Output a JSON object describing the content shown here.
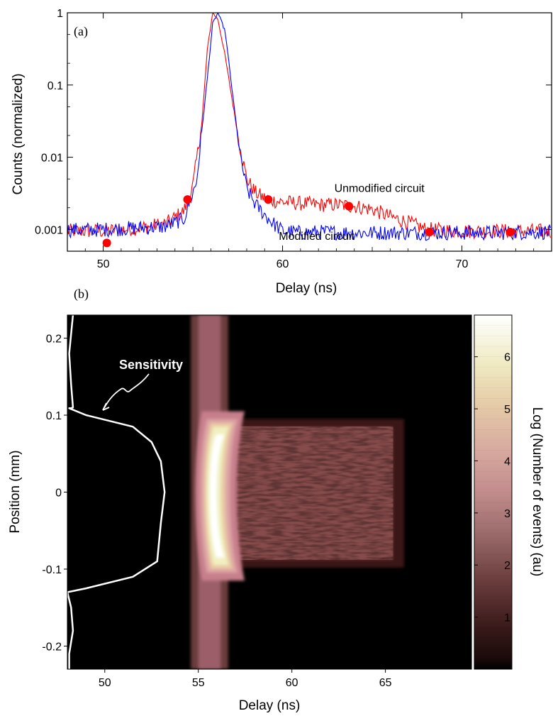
{
  "chart_data": [
    {
      "type": "line",
      "panel_label": "(a)",
      "title": "",
      "xlabel": "Delay (ns)",
      "ylabel": "Counts (normalized)",
      "xlim": [
        48,
        75
      ],
      "ylim": [
        0.0005,
        1
      ],
      "yscale": "log",
      "x_ticks": [
        50,
        60,
        70
      ],
      "x_tick_labels": [
        "50",
        "60",
        "70"
      ],
      "y_ticks": [
        0.001,
        0.01,
        0.1,
        1
      ],
      "y_tick_labels": [
        "0.001",
        "0.01",
        "0.1",
        "1"
      ],
      "grid": false,
      "series": [
        {
          "name": "Unmodified circuit",
          "color": "#ff0000",
          "x": [
            48,
            50,
            52,
            53.5,
            54.5,
            55,
            55.5,
            55.8,
            56.1,
            56.4,
            56.8,
            57.2,
            57.6,
            58,
            58.5,
            59,
            59.5,
            60,
            61,
            62,
            63,
            64,
            65,
            66,
            67,
            68,
            70,
            72,
            75
          ],
          "y": [
            0.00095,
            0.00095,
            0.00105,
            0.0012,
            0.0018,
            0.004,
            0.03,
            0.3,
            1,
            0.8,
            0.25,
            0.06,
            0.015,
            0.005,
            0.0032,
            0.0027,
            0.0025,
            0.0024,
            0.0023,
            0.0022,
            0.0022,
            0.0021,
            0.0019,
            0.0015,
            0.00125,
            0.001,
            0.00095,
            0.00095,
            0.00095
          ]
        },
        {
          "name": "Modified circuit",
          "color": "#0000ff",
          "x": [
            48,
            50,
            52,
            53.5,
            54.5,
            55.2,
            55.8,
            56.1,
            56.4,
            56.8,
            57.2,
            57.6,
            58,
            58.5,
            59,
            59.5,
            60,
            61,
            62,
            64,
            66,
            68,
            70,
            72,
            75
          ],
          "y": [
            0.00098,
            0.001,
            0.00105,
            0.0011,
            0.0014,
            0.0045,
            0.12,
            0.7,
            1,
            0.55,
            0.08,
            0.012,
            0.0036,
            0.0022,
            0.0016,
            0.0012,
            0.00095,
            0.0009,
            0.00092,
            0.0009,
            0.0009,
            0.0009,
            0.0009,
            0.0009,
            0.00092
          ]
        },
        {
          "name": "",
          "style": "markers",
          "color": "#ff0000",
          "x": [
            50.2,
            54.7,
            59.2,
            63.7,
            68.2,
            72.7
          ],
          "y": [
            0.00065,
            0.0026,
            0.0026,
            0.0021,
            0.00092,
            0.00092
          ]
        }
      ],
      "annotations": [
        {
          "text": "Unmodified circuit",
          "x": 65.4,
          "y": 0.0033
        },
        {
          "text": "Modified circuit",
          "x": 61.9,
          "y": 0.00072
        }
      ]
    },
    {
      "type": "heatmap",
      "panel_label": "(b)",
      "title": "",
      "xlabel": "Delay (ns)",
      "ylabel": "Position (mm)",
      "xlim": [
        48,
        69.6
      ],
      "ylim": [
        -0.23,
        0.23
      ],
      "x_ticks": [
        50,
        55,
        60,
        65
      ],
      "x_tick_labels": [
        "50",
        "55",
        "60",
        "65"
      ],
      "y_ticks": [
        0.2,
        0.1,
        0,
        -0.1,
        -0.2
      ],
      "y_tick_labels": [
        "0.2",
        "0.1",
        "0",
        "-0.1",
        "-0.2"
      ],
      "colorbar": {
        "label": "Log (Number of events) (au)",
        "range": [
          0,
          6.8
        ],
        "ticks": [
          1,
          2,
          3,
          4,
          5,
          6
        ],
        "tick_labels": [
          "1",
          "2",
          "3",
          "4",
          "5",
          "6"
        ],
        "colormap": [
          "#000000",
          "#3a1414",
          "#6b3d3d",
          "#9c5e6b",
          "#c77f8c",
          "#dca3a3",
          "#e9c9a5",
          "#f0f0c0",
          "#ffffff"
        ]
      },
      "sensitivity_curve": {
        "label": "Sensitivity",
        "color": "#ffffff",
        "x": [
          48.3,
          48.1,
          48.2,
          48.3,
          48.2,
          48.1,
          49,
          51.5,
          52.5,
          53,
          53.2,
          53,
          52.8,
          51.5,
          49,
          48,
          48.2,
          48.3,
          48.1,
          48.1
        ],
        "y": [
          0.23,
          0.18,
          0.14,
          0.11,
          0.109,
          0.109,
          0.1,
          0.085,
          0.065,
          0.04,
          0,
          -0.04,
          -0.09,
          -0.11,
          -0.125,
          -0.13,
          -0.15,
          -0.18,
          -0.21,
          -0.23
        ]
      }
    }
  ]
}
